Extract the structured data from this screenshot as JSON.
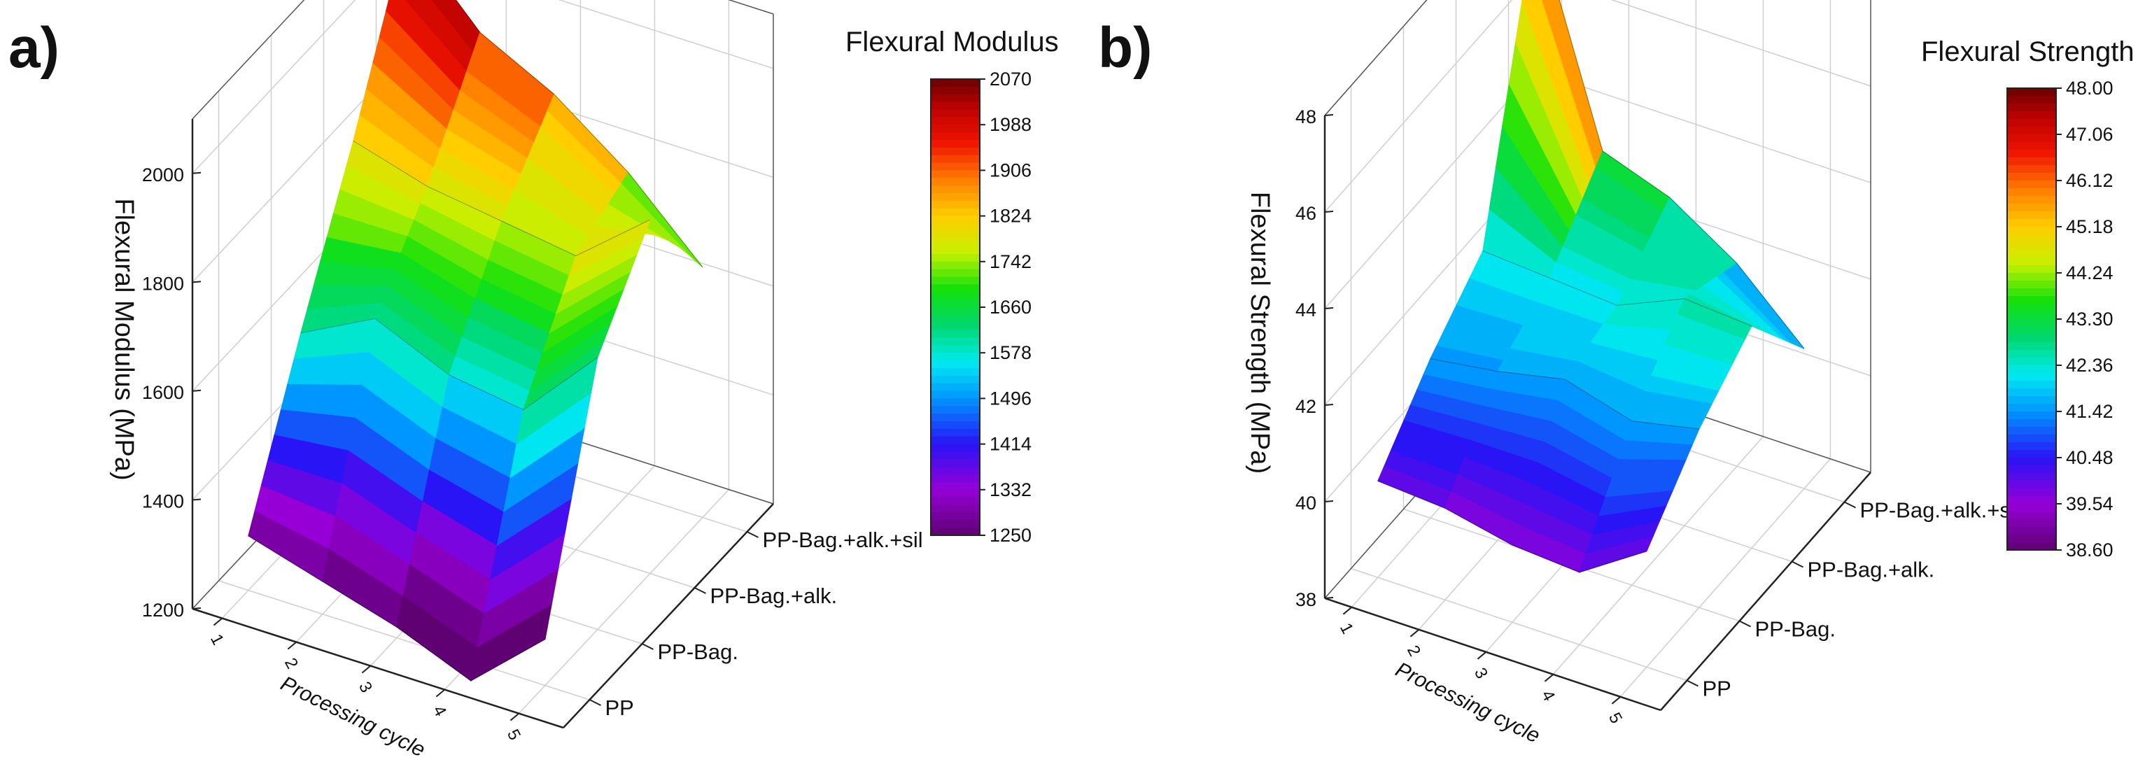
{
  "chart_data": [
    {
      "type": "surface",
      "panel_label": "a)",
      "zlabel": "Flexural Modulus (MPa)",
      "xlabel": "Processing cycle",
      "x_ticks": [
        "1",
        "2",
        "3",
        "4",
        "5"
      ],
      "y_categories": [
        "PP",
        "PP-Bag.",
        "PP-Bag.+alk.",
        "PP-Bag.+alk.+sil"
      ],
      "z_ticks": [
        "1200",
        "1400",
        "1600",
        "1800",
        "2000"
      ],
      "zlim": [
        1200,
        2100
      ],
      "colorbar": {
        "title": "Flexural Modulus",
        "ticks": [
          "2070",
          "1988",
          "1906",
          "1824",
          "1742",
          "1660",
          "1578",
          "1496",
          "1414",
          "1332",
          "1250"
        ],
        "min": 1250,
        "max": 2070
      },
      "surface_z": [
        [
          1300,
          1260,
          1220,
          1165,
          1285
        ],
        [
          1570,
          1640,
          1580,
          1560,
          1700
        ],
        [
          1820,
          1780,
          1760,
          1740,
          1850
        ],
        [
          2100,
          1960,
          1890,
          1790,
          1660
        ]
      ]
    },
    {
      "type": "surface",
      "panel_label": "b)",
      "zlabel": "Flexural Strength (MPa)",
      "xlabel": "Processing cycle",
      "x_ticks": [
        "1",
        "2",
        "3",
        "4",
        "5"
      ],
      "y_categories": [
        "PP",
        "PP-Bag.",
        "PP-Bag.+alk.",
        "PP-Bag.+alk.+sil"
      ],
      "z_ticks": [
        "38",
        "40",
        "42",
        "44",
        "46",
        "48"
      ],
      "zlim": [
        38,
        48
      ],
      "colorbar": {
        "title": "Flexural Strength",
        "ticks": [
          "48.00",
          "47.06",
          "46.12",
          "45.18",
          "44.24",
          "43.30",
          "42.36",
          "41.42",
          "40.48",
          "39.54",
          "38.60"
        ],
        "min": 38.6,
        "max": 48.0
      },
      "surface_z": [
        [
          40.0,
          39.9,
          39.6,
          39.5,
          40.4
        ],
        [
          41.3,
          41.5,
          41.8,
          41.4,
          41.7
        ],
        [
          42.3,
          42.2,
          42.1,
          42.7,
          42.6
        ],
        [
          48.0,
          43.6,
          43.1,
          42.2,
          40.9
        ]
      ]
    }
  ]
}
